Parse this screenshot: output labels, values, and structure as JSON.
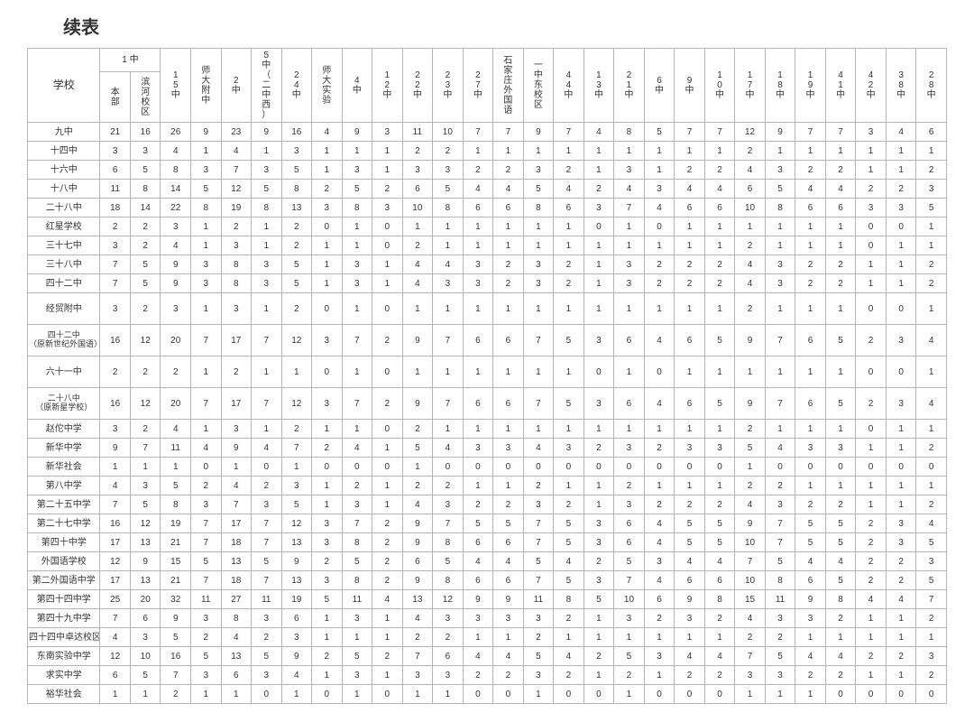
{
  "title": "续表",
  "header": {
    "school_label": "学校",
    "group_1zhong": "1 中",
    "sub_benbu": "本部",
    "sub_binhe": "滨河校区",
    "cols": [
      "15中",
      "师大附中",
      "2中",
      "5 中（二中西）",
      "24中",
      "师大实验",
      "4中",
      "12中",
      "22中",
      "23中",
      "27中",
      "石家庄外国语",
      "一中东校区",
      "44中",
      "13中",
      "21中",
      "6中",
      "9中",
      "10中",
      "17中",
      "18中",
      "19中",
      "41中",
      "42中",
      "38中",
      "28中"
    ]
  },
  "rows": [
    {
      "tall": false,
      "label": "九中",
      "subA": "21",
      "subB": "16",
      "cells": [
        "26",
        "9",
        "23",
        "9",
        "16",
        "4",
        "9",
        "3",
        "11",
        "10",
        "7",
        "7",
        "9",
        "7",
        "4",
        "8",
        "5",
        "7",
        "7",
        "12",
        "9",
        "7",
        "7",
        "3",
        "4",
        "6"
      ]
    },
    {
      "tall": false,
      "label": "十四中",
      "subA": "3",
      "subB": "3",
      "cells": [
        "4",
        "1",
        "4",
        "1",
        "3",
        "1",
        "1",
        "1",
        "2",
        "2",
        "1",
        "1",
        "1",
        "1",
        "1",
        "1",
        "1",
        "1",
        "1",
        "2",
        "1",
        "1",
        "1",
        "1",
        "1",
        "1"
      ]
    },
    {
      "tall": false,
      "label": "十六中",
      "subA": "6",
      "subB": "5",
      "cells": [
        "8",
        "3",
        "7",
        "3",
        "5",
        "1",
        "3",
        "1",
        "3",
        "3",
        "2",
        "2",
        "3",
        "2",
        "1",
        "3",
        "1",
        "2",
        "2",
        "4",
        "3",
        "2",
        "2",
        "1",
        "1",
        "2"
      ]
    },
    {
      "tall": false,
      "label": "十八中",
      "subA": "11",
      "subB": "8",
      "cells": [
        "14",
        "5",
        "12",
        "5",
        "8",
        "2",
        "5",
        "2",
        "6",
        "5",
        "4",
        "4",
        "5",
        "4",
        "2",
        "4",
        "3",
        "4",
        "4",
        "6",
        "5",
        "4",
        "4",
        "2",
        "2",
        "3"
      ]
    },
    {
      "tall": false,
      "label": "二十八中",
      "subA": "18",
      "subB": "14",
      "cells": [
        "22",
        "8",
        "19",
        "8",
        "13",
        "3",
        "8",
        "3",
        "10",
        "8",
        "6",
        "6",
        "8",
        "6",
        "3",
        "7",
        "4",
        "6",
        "6",
        "10",
        "8",
        "6",
        "6",
        "3",
        "3",
        "5"
      ]
    },
    {
      "tall": false,
      "label": "红星学校",
      "subA": "2",
      "subB": "2",
      "cells": [
        "3",
        "1",
        "2",
        "1",
        "2",
        "0",
        "1",
        "0",
        "1",
        "1",
        "1",
        "1",
        "1",
        "1",
        "0",
        "1",
        "0",
        "1",
        "1",
        "1",
        "1",
        "1",
        "1",
        "0",
        "0",
        "1"
      ]
    },
    {
      "tall": false,
      "label": "三十七中",
      "subA": "3",
      "subB": "2",
      "cells": [
        "4",
        "1",
        "3",
        "1",
        "2",
        "1",
        "1",
        "0",
        "2",
        "1",
        "1",
        "1",
        "1",
        "1",
        "1",
        "1",
        "1",
        "1",
        "1",
        "2",
        "1",
        "1",
        "1",
        "0",
        "1",
        "1"
      ]
    },
    {
      "tall": false,
      "label": "三十八中",
      "subA": "7",
      "subB": "5",
      "cells": [
        "9",
        "3",
        "8",
        "3",
        "5",
        "1",
        "3",
        "1",
        "4",
        "4",
        "3",
        "2",
        "3",
        "2",
        "1",
        "3",
        "2",
        "2",
        "2",
        "4",
        "3",
        "2",
        "2",
        "1",
        "1",
        "2"
      ]
    },
    {
      "tall": false,
      "label": "四十二中",
      "subA": "7",
      "subB": "5",
      "cells": [
        "9",
        "3",
        "8",
        "3",
        "5",
        "1",
        "3",
        "1",
        "4",
        "3",
        "3",
        "2",
        "3",
        "2",
        "1",
        "3",
        "2",
        "2",
        "2",
        "4",
        "3",
        "2",
        "2",
        "1",
        "1",
        "2"
      ]
    },
    {
      "tall": true,
      "label": "经贸附中",
      "subA": "3",
      "subB": "2",
      "cells": [
        "3",
        "1",
        "3",
        "1",
        "2",
        "0",
        "1",
        "0",
        "1",
        "1",
        "1",
        "1",
        "1",
        "1",
        "1",
        "1",
        "1",
        "1",
        "1",
        "2",
        "1",
        "1",
        "1",
        "0",
        "0",
        "1"
      ]
    },
    {
      "tall": true,
      "label": "四十二中\n（原新世纪外国语）",
      "subA": "16",
      "subB": "12",
      "cells": [
        "20",
        "7",
        "17",
        "7",
        "12",
        "3",
        "7",
        "2",
        "9",
        "7",
        "6",
        "6",
        "7",
        "5",
        "3",
        "6",
        "4",
        "6",
        "5",
        "9",
        "7",
        "6",
        "5",
        "2",
        "3",
        "4"
      ]
    },
    {
      "tall": true,
      "label": "六十一中",
      "subA": "2",
      "subB": "2",
      "cells": [
        "2",
        "1",
        "2",
        "1",
        "1",
        "0",
        "1",
        "0",
        "1",
        "1",
        "1",
        "1",
        "1",
        "1",
        "0",
        "1",
        "0",
        "1",
        "1",
        "1",
        "1",
        "1",
        "1",
        "0",
        "0",
        "1"
      ]
    },
    {
      "tall": true,
      "label": "二十八中\n（原新星学校）",
      "subA": "16",
      "subB": "12",
      "cells": [
        "20",
        "7",
        "17",
        "7",
        "12",
        "3",
        "7",
        "2",
        "9",
        "7",
        "6",
        "6",
        "7",
        "5",
        "3",
        "6",
        "4",
        "6",
        "5",
        "9",
        "7",
        "6",
        "5",
        "2",
        "3",
        "4"
      ]
    },
    {
      "tall": false,
      "label": "赵佗中学",
      "subA": "3",
      "subB": "2",
      "cells": [
        "4",
        "1",
        "3",
        "1",
        "2",
        "1",
        "1",
        "0",
        "2",
        "1",
        "1",
        "1",
        "1",
        "1",
        "1",
        "1",
        "1",
        "1",
        "1",
        "2",
        "1",
        "1",
        "1",
        "0",
        "1",
        "1"
      ]
    },
    {
      "tall": false,
      "label": "新华中学",
      "subA": "9",
      "subB": "7",
      "cells": [
        "11",
        "4",
        "9",
        "4",
        "7",
        "2",
        "4",
        "1",
        "5",
        "4",
        "3",
        "3",
        "4",
        "3",
        "2",
        "3",
        "2",
        "3",
        "3",
        "5",
        "4",
        "3",
        "3",
        "1",
        "1",
        "2"
      ]
    },
    {
      "tall": false,
      "label": "新华社会",
      "subA": "1",
      "subB": "1",
      "cells": [
        "1",
        "0",
        "1",
        "0",
        "1",
        "0",
        "0",
        "0",
        "1",
        "0",
        "0",
        "0",
        "0",
        "0",
        "0",
        "0",
        "0",
        "0",
        "0",
        "1",
        "0",
        "0",
        "0",
        "0",
        "0",
        "0"
      ]
    },
    {
      "tall": false,
      "label": "第八中学",
      "subA": "4",
      "subB": "3",
      "cells": [
        "5",
        "2",
        "4",
        "2",
        "3",
        "1",
        "2",
        "1",
        "2",
        "2",
        "1",
        "1",
        "2",
        "1",
        "1",
        "2",
        "1",
        "1",
        "1",
        "2",
        "2",
        "1",
        "1",
        "1",
        "1",
        "1"
      ]
    },
    {
      "tall": false,
      "label": "第二十五中学",
      "subA": "7",
      "subB": "5",
      "cells": [
        "8",
        "3",
        "7",
        "3",
        "5",
        "1",
        "3",
        "1",
        "4",
        "3",
        "2",
        "2",
        "3",
        "2",
        "1",
        "3",
        "2",
        "2",
        "2",
        "4",
        "3",
        "2",
        "2",
        "1",
        "1",
        "2"
      ]
    },
    {
      "tall": false,
      "label": "第二十七中学",
      "subA": "16",
      "subB": "12",
      "cells": [
        "19",
        "7",
        "17",
        "7",
        "12",
        "3",
        "7",
        "2",
        "9",
        "7",
        "5",
        "5",
        "7",
        "5",
        "3",
        "6",
        "4",
        "5",
        "5",
        "9",
        "7",
        "5",
        "5",
        "2",
        "3",
        "4"
      ]
    },
    {
      "tall": false,
      "label": "第四十中学",
      "subA": "17",
      "subB": "13",
      "cells": [
        "21",
        "7",
        "18",
        "7",
        "13",
        "3",
        "8",
        "2",
        "9",
        "8",
        "6",
        "6",
        "7",
        "5",
        "3",
        "6",
        "4",
        "5",
        "5",
        "10",
        "7",
        "5",
        "5",
        "2",
        "3",
        "5"
      ]
    },
    {
      "tall": false,
      "label": "外国语学校",
      "subA": "12",
      "subB": "9",
      "cells": [
        "15",
        "5",
        "13",
        "5",
        "9",
        "2",
        "5",
        "2",
        "6",
        "5",
        "4",
        "4",
        "5",
        "4",
        "2",
        "5",
        "3",
        "4",
        "4",
        "7",
        "5",
        "4",
        "4",
        "2",
        "2",
        "3"
      ]
    },
    {
      "tall": false,
      "label": "第二外国语中学",
      "subA": "17",
      "subB": "13",
      "cells": [
        "21",
        "7",
        "18",
        "7",
        "13",
        "3",
        "8",
        "2",
        "9",
        "8",
        "6",
        "6",
        "7",
        "5",
        "3",
        "7",
        "4",
        "6",
        "6",
        "10",
        "8",
        "6",
        "5",
        "2",
        "2",
        "5"
      ]
    },
    {
      "tall": false,
      "label": "第四十四中学",
      "subA": "25",
      "subB": "20",
      "cells": [
        "32",
        "11",
        "27",
        "11",
        "19",
        "5",
        "11",
        "4",
        "13",
        "12",
        "9",
        "9",
        "11",
        "8",
        "5",
        "10",
        "6",
        "9",
        "8",
        "15",
        "11",
        "9",
        "8",
        "4",
        "4",
        "7"
      ]
    },
    {
      "tall": false,
      "label": "第四十九中学",
      "subA": "7",
      "subB": "6",
      "cells": [
        "9",
        "3",
        "8",
        "3",
        "6",
        "1",
        "3",
        "1",
        "4",
        "3",
        "3",
        "3",
        "3",
        "2",
        "1",
        "3",
        "2",
        "3",
        "2",
        "4",
        "3",
        "3",
        "2",
        "1",
        "1",
        "2"
      ]
    },
    {
      "tall": false,
      "label": "四十四中卓达校区",
      "subA": "4",
      "subB": "3",
      "cells": [
        "5",
        "2",
        "4",
        "2",
        "3",
        "1",
        "1",
        "1",
        "2",
        "2",
        "1",
        "1",
        "2",
        "1",
        "1",
        "1",
        "1",
        "1",
        "1",
        "2",
        "2",
        "1",
        "1",
        "1",
        "1",
        "1"
      ]
    },
    {
      "tall": false,
      "label": "东南实验中学",
      "subA": "12",
      "subB": "10",
      "cells": [
        "16",
        "5",
        "13",
        "5",
        "9",
        "2",
        "5",
        "2",
        "7",
        "6",
        "4",
        "4",
        "5",
        "4",
        "2",
        "5",
        "3",
        "4",
        "4",
        "7",
        "5",
        "4",
        "4",
        "2",
        "2",
        "3"
      ]
    },
    {
      "tall": false,
      "label": "求实中学",
      "subA": "6",
      "subB": "5",
      "cells": [
        "7",
        "3",
        "6",
        "3",
        "4",
        "1",
        "3",
        "1",
        "3",
        "3",
        "2",
        "2",
        "3",
        "2",
        "1",
        "2",
        "1",
        "2",
        "2",
        "3",
        "3",
        "2",
        "2",
        "1",
        "1",
        "2"
      ]
    },
    {
      "tall": false,
      "label": "裕华社会",
      "subA": "1",
      "subB": "1",
      "cells": [
        "2",
        "1",
        "1",
        "0",
        "1",
        "0",
        "1",
        "0",
        "1",
        "1",
        "0",
        "0",
        "1",
        "0",
        "0",
        "1",
        "0",
        "0",
        "0",
        "1",
        "1",
        "1",
        "0",
        "0",
        "0",
        "0"
      ]
    }
  ]
}
